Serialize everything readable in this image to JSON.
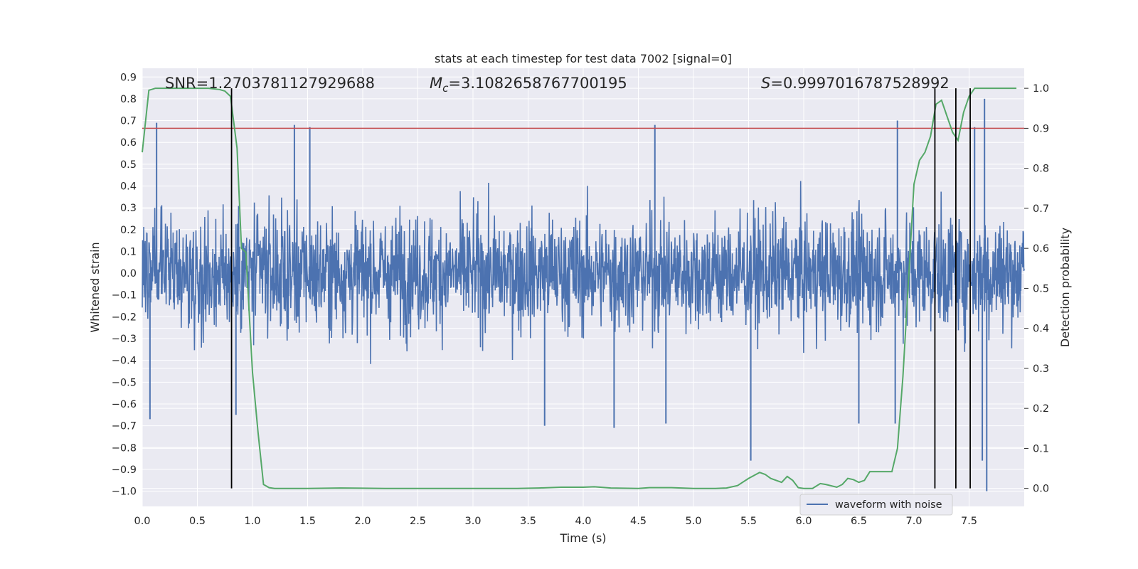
{
  "chart_data": {
    "type": "line",
    "title": "stats at each timestep for test data 7002 [signal=0]",
    "xlabel": "Time (s)",
    "ylabel": "Whitened strain",
    "y2label": "Detection probability",
    "xlim": [
      0.0,
      8.0
    ],
    "ylim": [
      -1.07,
      0.94
    ],
    "y2lim": [
      -0.045,
      1.05
    ],
    "xticks": [
      "0.0",
      "0.5",
      "1.0",
      "1.5",
      "2.0",
      "2.5",
      "3.0",
      "3.5",
      "4.0",
      "4.5",
      "5.0",
      "5.5",
      "6.0",
      "6.5",
      "7.0",
      "7.5"
    ],
    "xtick_values": [
      0,
      0.5,
      1,
      1.5,
      2,
      2.5,
      3,
      3.5,
      4,
      4.5,
      5,
      5.5,
      6,
      6.5,
      7,
      7.5
    ],
    "yticks": [
      "0.9",
      "0.8",
      "0.7",
      "0.6",
      "0.5",
      "0.4",
      "0.3",
      "0.2",
      "0.1",
      "0.0",
      "−0.1",
      "−0.2",
      "−0.3",
      "−0.4",
      "−0.5",
      "−0.6",
      "−0.7",
      "−0.8",
      "−0.9",
      "−1.0"
    ],
    "ytick_values": [
      0.9,
      0.8,
      0.7,
      0.6,
      0.5,
      0.4,
      0.3,
      0.2,
      0.1,
      0.0,
      -0.1,
      -0.2,
      -0.3,
      -0.4,
      -0.5,
      -0.6,
      -0.7,
      -0.8,
      -0.9,
      -1.0
    ],
    "y2ticks": [
      "0.0",
      "0.1",
      "0.2",
      "0.3",
      "0.4",
      "0.5",
      "0.6",
      "0.7",
      "0.8",
      "0.9",
      "1.0"
    ],
    "y2tick_values": [
      0,
      0.1,
      0.2,
      0.3,
      0.4,
      0.5,
      0.6,
      0.7,
      0.8,
      0.9,
      1.0
    ],
    "annotations": {
      "snr": "SNR=1.270378112792968 8",
      "mc_symbol": "M",
      "mc_sub": "c",
      "mc_value": "=3.1082658767700195",
      "s_symbol": "S",
      "s_value": "=0.9997016787528992"
    },
    "legend": {
      "label": "waveform with noise",
      "location": "lower right"
    },
    "threshold_y2": 0.9,
    "vlines_x": [
      0.81,
      7.19,
      7.38,
      7.51
    ],
    "waveform": {
      "name": "waveform with noise",
      "x_range": [
        0.0,
        8.0
      ],
      "typical_amplitude": 0.3,
      "spikes": [
        {
          "x": 0.13,
          "y": 0.69
        },
        {
          "x": 1.38,
          "y": 0.68
        },
        {
          "x": 1.52,
          "y": 0.67
        },
        {
          "x": 4.65,
          "y": 0.68
        },
        {
          "x": 6.85,
          "y": 0.7
        },
        {
          "x": 7.55,
          "y": 0.67
        },
        {
          "x": 7.64,
          "y": 0.8
        },
        {
          "x": 7.66,
          "y": -1.0
        },
        {
          "x": 7.62,
          "y": -0.86
        },
        {
          "x": 5.52,
          "y": -0.86
        },
        {
          "x": 0.07,
          "y": -0.67
        },
        {
          "x": 3.65,
          "y": -0.7
        },
        {
          "x": 4.28,
          "y": -0.71
        },
        {
          "x": 6.83,
          "y": -0.69
        },
        {
          "x": 0.85,
          "y": -0.65
        },
        {
          "x": 6.5,
          "y": -0.69
        },
        {
          "x": 4.75,
          "y": -0.69
        }
      ]
    },
    "probability": {
      "name": "detection probability",
      "x": [
        0.0,
        0.06,
        0.12,
        0.2,
        0.3,
        0.4,
        0.5,
        0.6,
        0.7,
        0.75,
        0.8,
        0.86,
        0.9,
        0.94,
        1.0,
        1.05,
        1.1,
        1.15,
        1.2,
        1.3,
        1.5,
        1.8,
        2.2,
        2.6,
        3.0,
        3.4,
        3.6,
        3.8,
        4.0,
        4.1,
        4.25,
        4.5,
        4.6,
        4.8,
        5.0,
        5.2,
        5.3,
        5.4,
        5.5,
        5.6,
        5.65,
        5.7,
        5.8,
        5.85,
        5.9,
        5.95,
        6.0,
        6.08,
        6.15,
        6.2,
        6.3,
        6.35,
        6.4,
        6.45,
        6.5,
        6.55,
        6.6,
        6.7,
        6.8,
        6.85,
        6.9,
        6.95,
        7.0,
        7.05,
        7.1,
        7.15,
        7.2,
        7.25,
        7.3,
        7.35,
        7.4,
        7.45,
        7.5,
        7.55,
        7.6,
        7.65,
        7.7,
        7.8,
        7.93
      ],
      "y": [
        0.84,
        0.995,
        1.0,
        1.0,
        1.0,
        1.0,
        1.0,
        1.0,
        0.997,
        0.993,
        0.98,
        0.85,
        0.6,
        0.59,
        0.29,
        0.14,
        0.01,
        0.002,
        0.0,
        0.0,
        0.0,
        0.001,
        0.0,
        0.0,
        0.0,
        0.0,
        0.001,
        0.003,
        0.003,
        0.004,
        0.001,
        0.0,
        0.002,
        0.002,
        0.0,
        0.0,
        0.001,
        0.007,
        0.025,
        0.04,
        0.035,
        0.025,
        0.015,
        0.03,
        0.02,
        0.002,
        0.0,
        0.0,
        0.012,
        0.01,
        0.003,
        0.01,
        0.025,
        0.022,
        0.015,
        0.02,
        0.042,
        0.042,
        0.042,
        0.1,
        0.28,
        0.52,
        0.76,
        0.82,
        0.84,
        0.88,
        0.96,
        0.97,
        0.93,
        0.89,
        0.87,
        0.94,
        0.98,
        1.0,
        1.0,
        1.0,
        1.0,
        1.0,
        1.0
      ]
    },
    "colors": {
      "background": "#eaeaf2",
      "grid": "#ffffff",
      "waveform": "#4c72b0",
      "probability": "#55a868",
      "threshold": "#c44e52",
      "vline": "#000000",
      "text": "#262626"
    }
  }
}
